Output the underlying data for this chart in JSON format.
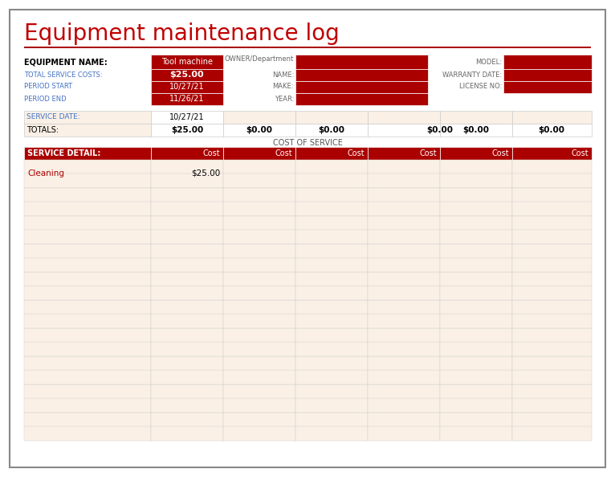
{
  "title": "Equipment maintenance log",
  "title_color": "#C00000",
  "title_fontsize": 20,
  "bg_color": "#FFFFFF",
  "red_dark": "#AA0000",
  "border_color": "#CCCCCC",
  "label_blue": "#4472C4",
  "cream": "#FAF0E6",
  "white": "#FFFFFF",
  "gray_label": "#666666",
  "eq_name_label": "EQUIPMENT NAME:",
  "eq_name_value": "Tool machine",
  "total_costs_label": "TOTAL SERVICE COSTS:",
  "total_costs_value": "$25.00",
  "period_start_label": "PERIOD START",
  "period_start_value": "10/27/21",
  "period_end_label": "PERIOD END",
  "period_end_value": "11/26/21",
  "owner_label": "OWNER/Department",
  "name_label": "NAME:",
  "make_label": "MAKE:",
  "year_label": "YEAR:",
  "model_label": "MODEL:",
  "warranty_label": "WARRANTY DATE:",
  "license_label": "LICENSE NO:",
  "service_date_label": "SERVICE DATE:",
  "service_date_value": "10/27/21",
  "totals_label": "TOTALS:",
  "totals_values": [
    "$25.00",
    "$0.00",
    "$0.00",
    "$0.00",
    "$0.00",
    "$0.00"
  ],
  "cost_of_service": "COST OF SERVICE",
  "service_detail_label": "SERVICE DETAIL:",
  "col_header": "Cost",
  "detail_row1_label": "Cleaning",
  "detail_row1_cost": "$25.00",
  "num_detail_rows": 10
}
